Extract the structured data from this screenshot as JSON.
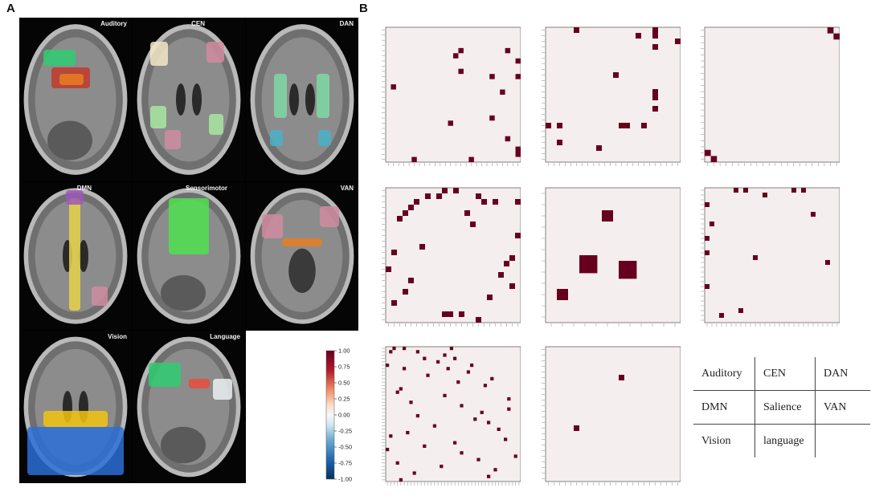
{
  "panel_a_letter": "A",
  "panel_b_letter": "B",
  "brain_panels": [
    {
      "label": "Auditory"
    },
    {
      "label": "CEN"
    },
    {
      "label": "DAN"
    },
    {
      "label": "DMN"
    },
    {
      "label": "Sensorimotor"
    },
    {
      "label": "VAN"
    },
    {
      "label": "Vision"
    },
    {
      "label": "Language"
    }
  ],
  "colorbar": {
    "ticks": [
      "1.00",
      "0.75",
      "0.50",
      "0.25",
      "0.00",
      "-0.25",
      "-0.50",
      "-0.75",
      "-1.00"
    ],
    "colors": {
      "high": "#67001f",
      "mid": "#f7f7f7",
      "low": "#053061"
    }
  },
  "legend_table": [
    [
      "Auditory",
      "CEN",
      "DAN"
    ],
    [
      "DMN",
      "Salience",
      "VAN"
    ],
    [
      "Vision",
      "language",
      ""
    ]
  ],
  "chart_data": [
    {
      "type": "heatmap",
      "network": "Auditory",
      "n": 26,
      "cells": [
        [
          4,
          14
        ],
        [
          5,
          13
        ],
        [
          4,
          23
        ],
        [
          6,
          25
        ],
        [
          9,
          20
        ],
        [
          9,
          25
        ],
        [
          11,
          1
        ],
        [
          17,
          20
        ],
        [
          18,
          12
        ],
        [
          21,
          23
        ],
        [
          23,
          25
        ],
        [
          24,
          25
        ],
        [
          25,
          5
        ],
        [
          8,
          14
        ],
        [
          12,
          22
        ],
        [
          25,
          16
        ]
      ]
    },
    {
      "type": "heatmap",
      "network": "CEN",
      "n": 24,
      "cells": [
        [
          0,
          19
        ],
        [
          1,
          16
        ],
        [
          1,
          19
        ],
        [
          2,
          23
        ],
        [
          3,
          19
        ],
        [
          11,
          19
        ],
        [
          12,
          19
        ],
        [
          14,
          19
        ],
        [
          17,
          0
        ],
        [
          17,
          2
        ],
        [
          17,
          13
        ],
        [
          17,
          14
        ],
        [
          17,
          17
        ],
        [
          20,
          2
        ],
        [
          0,
          5
        ],
        [
          8,
          12
        ],
        [
          21,
          9
        ]
      ]
    },
    {
      "type": "heatmap",
      "network": "DAN",
      "n": 22,
      "cells": [
        [
          0,
          20
        ],
        [
          1,
          21
        ],
        [
          20,
          0
        ],
        [
          21,
          1
        ]
      ]
    },
    {
      "type": "heatmap",
      "network": "DMN",
      "n": 24,
      "cells": [
        [
          0,
          10
        ],
        [
          0,
          12
        ],
        [
          1,
          7
        ],
        [
          1,
          9
        ],
        [
          1,
          16
        ],
        [
          2,
          5
        ],
        [
          2,
          17
        ],
        [
          2,
          19
        ],
        [
          2,
          23
        ],
        [
          3,
          4
        ],
        [
          4,
          3
        ],
        [
          4,
          14
        ],
        [
          5,
          2
        ],
        [
          6,
          15
        ],
        [
          8,
          23
        ],
        [
          10,
          6
        ],
        [
          11,
          1
        ],
        [
          12,
          22
        ],
        [
          13,
          21
        ],
        [
          14,
          0
        ],
        [
          15,
          20
        ],
        [
          16,
          4
        ],
        [
          17,
          22
        ],
        [
          18,
          3
        ],
        [
          19,
          18
        ],
        [
          20,
          1
        ],
        [
          22,
          10
        ],
        [
          22,
          11
        ],
        [
          22,
          13
        ],
        [
          23,
          16
        ]
      ]
    },
    {
      "type": "heatmap",
      "network": "Salience",
      "n": 12,
      "blocks": [
        {
          "row": 6,
          "col": 3,
          "size": 1.6
        },
        {
          "row": 6.5,
          "col": 6.5,
          "size": 1.6
        }
      ],
      "cells": [
        [
          2,
          5
        ],
        [
          9,
          1
        ]
      ]
    },
    {
      "type": "heatmap",
      "network": "VAN",
      "n": 28,
      "cells": [
        [
          0,
          6
        ],
        [
          0,
          8
        ],
        [
          0,
          18
        ],
        [
          0,
          20
        ],
        [
          1,
          12
        ],
        [
          3,
          0
        ],
        [
          5,
          22
        ],
        [
          7,
          1
        ],
        [
          10,
          0
        ],
        [
          13,
          0
        ],
        [
          14,
          10
        ],
        [
          15,
          25
        ],
        [
          20,
          0
        ],
        [
          25,
          7
        ],
        [
          26,
          3
        ]
      ]
    },
    {
      "type": "heatmap",
      "network": "Vision",
      "n": 40,
      "cells": [
        [
          0,
          2
        ],
        [
          0,
          5
        ],
        [
          0,
          19
        ],
        [
          1,
          1
        ],
        [
          1,
          9
        ],
        [
          2,
          17
        ],
        [
          3,
          11
        ],
        [
          3,
          20
        ],
        [
          4,
          15
        ],
        [
          5,
          0
        ],
        [
          5,
          25
        ],
        [
          6,
          5
        ],
        [
          6,
          18
        ],
        [
          7,
          24
        ],
        [
          8,
          12
        ],
        [
          9,
          31
        ],
        [
          10,
          21
        ],
        [
          11,
          29
        ],
        [
          12,
          4
        ],
        [
          13,
          3
        ],
        [
          14,
          17
        ],
        [
          15,
          36
        ],
        [
          16,
          7
        ],
        [
          17,
          22
        ],
        [
          18,
          36
        ],
        [
          19,
          28
        ],
        [
          20,
          9
        ],
        [
          21,
          26
        ],
        [
          22,
          30
        ],
        [
          23,
          14
        ],
        [
          24,
          33
        ],
        [
          25,
          6
        ],
        [
          26,
          1
        ],
        [
          27,
          35
        ],
        [
          28,
          20
        ],
        [
          29,
          11
        ],
        [
          30,
          0
        ],
        [
          31,
          22
        ],
        [
          32,
          38
        ],
        [
          33,
          27
        ],
        [
          34,
          3
        ],
        [
          35,
          16
        ],
        [
          36,
          32
        ],
        [
          37,
          8
        ],
        [
          38,
          30
        ],
        [
          39,
          4
        ]
      ]
    },
    {
      "type": "heatmap",
      "network": "language",
      "n": 24,
      "cells": [
        [
          5,
          13
        ],
        [
          14,
          5
        ]
      ]
    }
  ]
}
